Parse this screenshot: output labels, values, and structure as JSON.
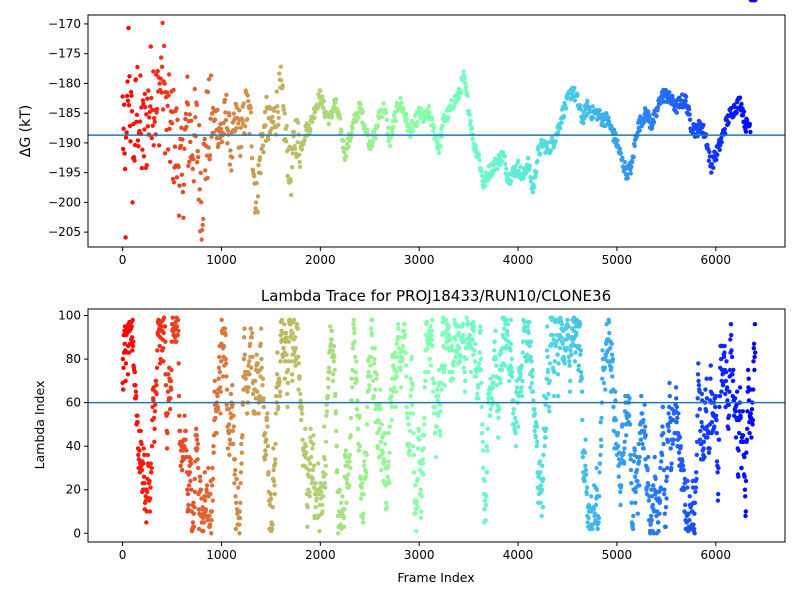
{
  "chart_data": [
    {
      "type": "scatter",
      "title": "",
      "xlabel": "",
      "ylabel": "ΔG (kT)",
      "xlim": [
        -350,
        6700
      ],
      "ylim": [
        -207.5,
        -168.5
      ],
      "xticks": [
        0,
        1000,
        2000,
        3000,
        4000,
        5000,
        6000
      ],
      "xtick_labels": [
        "0",
        "1000",
        "2000",
        "3000",
        "4000",
        "5000",
        "6000"
      ],
      "yticks": [
        -170,
        -175,
        -180,
        -185,
        -190,
        -195,
        -200,
        -205
      ],
      "ytick_labels": [
        "−170",
        "−175",
        "−180",
        "−185",
        "−190",
        "−195",
        "−200",
        "−205"
      ],
      "hline": -188.7,
      "hline_color": "#1f77b4",
      "colormap": "rainbow (reversed with frame index: red at 0, violet at end)",
      "series_anchor_x": [
        0,
        30,
        60,
        100,
        150,
        200,
        250,
        300,
        350,
        400,
        450,
        500,
        550,
        600,
        650,
        700,
        750,
        800,
        850,
        900,
        950,
        1000,
        1050,
        1100,
        1150,
        1200,
        1250,
        1300,
        1350,
        1400,
        1450,
        1500,
        1550,
        1600,
        1650,
        1700,
        1750,
        1800,
        1850,
        1900,
        1950,
        2000,
        2050,
        2100,
        2150,
        2200,
        2250,
        2300,
        2350,
        2400,
        2450,
        2500,
        2550,
        2600,
        2650,
        2700,
        2750,
        2800,
        2850,
        2900,
        2950,
        3000,
        3050,
        3100,
        3150,
        3200,
        3250,
        3300,
        3350,
        3400,
        3450,
        3500,
        3550,
        3600,
        3650,
        3700,
        3750,
        3800,
        3850,
        3900,
        3950,
        4000,
        4050,
        4100,
        4150,
        4200,
        4250,
        4300,
        4350,
        4400,
        4450,
        4500,
        4550,
        4600,
        4650,
        4700,
        4750,
        4800,
        4850,
        4900,
        4950,
        5000,
        5050,
        5100,
        5150,
        5200,
        5250,
        5300,
        5350,
        5400,
        5450,
        5500,
        5550,
        5600,
        5650,
        5700,
        5750,
        5800,
        5850,
        5900,
        5950,
        6000,
        6050,
        6100,
        6150,
        6200,
        6250,
        6300,
        6350,
        6400
      ],
      "series_anchor_y": [
        -185,
        -200,
        -176,
        -193,
        -183,
        -190,
        -186,
        -180,
        -185,
        -177,
        -187,
        -188,
        -191,
        -197,
        -186,
        -190,
        -189,
        -199,
        -189,
        -187,
        -186,
        -189,
        -185,
        -192,
        -186,
        -189,
        -184,
        -187,
        -201,
        -191,
        -186,
        -188,
        -185,
        -181,
        -189,
        -196,
        -188,
        -191,
        -188,
        -187,
        -184,
        -182,
        -185,
        -186,
        -183,
        -187,
        -192,
        -189,
        -186,
        -184,
        -187,
        -190,
        -189,
        -185,
        -184,
        -190,
        -186,
        -183,
        -185,
        -188,
        -187,
        -185,
        -186,
        -185,
        -188,
        -191,
        -186,
        -185,
        -183,
        -182,
        -179,
        -184,
        -190,
        -192,
        -197,
        -195,
        -194,
        -193,
        -192,
        -196,
        -195,
        -194,
        -196,
        -193,
        -198,
        -192,
        -190,
        -191,
        -190,
        -188,
        -185,
        -183,
        -181,
        -183,
        -186,
        -184,
        -185,
        -185,
        -186,
        -186,
        -188,
        -190,
        -193,
        -195,
        -194,
        -188,
        -186,
        -185,
        -187,
        -185,
        -182,
        -182,
        -183,
        -184,
        -183,
        -183,
        -187,
        -188,
        -187,
        -189,
        -194,
        -192,
        -190,
        -187,
        -185,
        -184,
        -183,
        -187,
        -187
      ]
    },
    {
      "type": "scatter",
      "title": "Lambda Trace for PROJ18433/RUN10/CLONE36",
      "xlabel": "Frame Index",
      "ylabel": "Lambda Index",
      "xlim": [
        -350,
        6700
      ],
      "ylim": [
        -4,
        103
      ],
      "xticks": [
        0,
        1000,
        2000,
        3000,
        4000,
        5000,
        6000
      ],
      "xtick_labels": [
        "0",
        "1000",
        "2000",
        "3000",
        "4000",
        "5000",
        "6000"
      ],
      "yticks": [
        0,
        20,
        40,
        60,
        80,
        100
      ],
      "ytick_labels": [
        "0",
        "20",
        "40",
        "60",
        "80",
        "100"
      ],
      "hline": 60,
      "hline_color": "#1f77b4",
      "value_range": [
        0,
        99
      ],
      "colormap": "rainbow (reversed with frame index: red at 0, violet at end)"
    }
  ]
}
